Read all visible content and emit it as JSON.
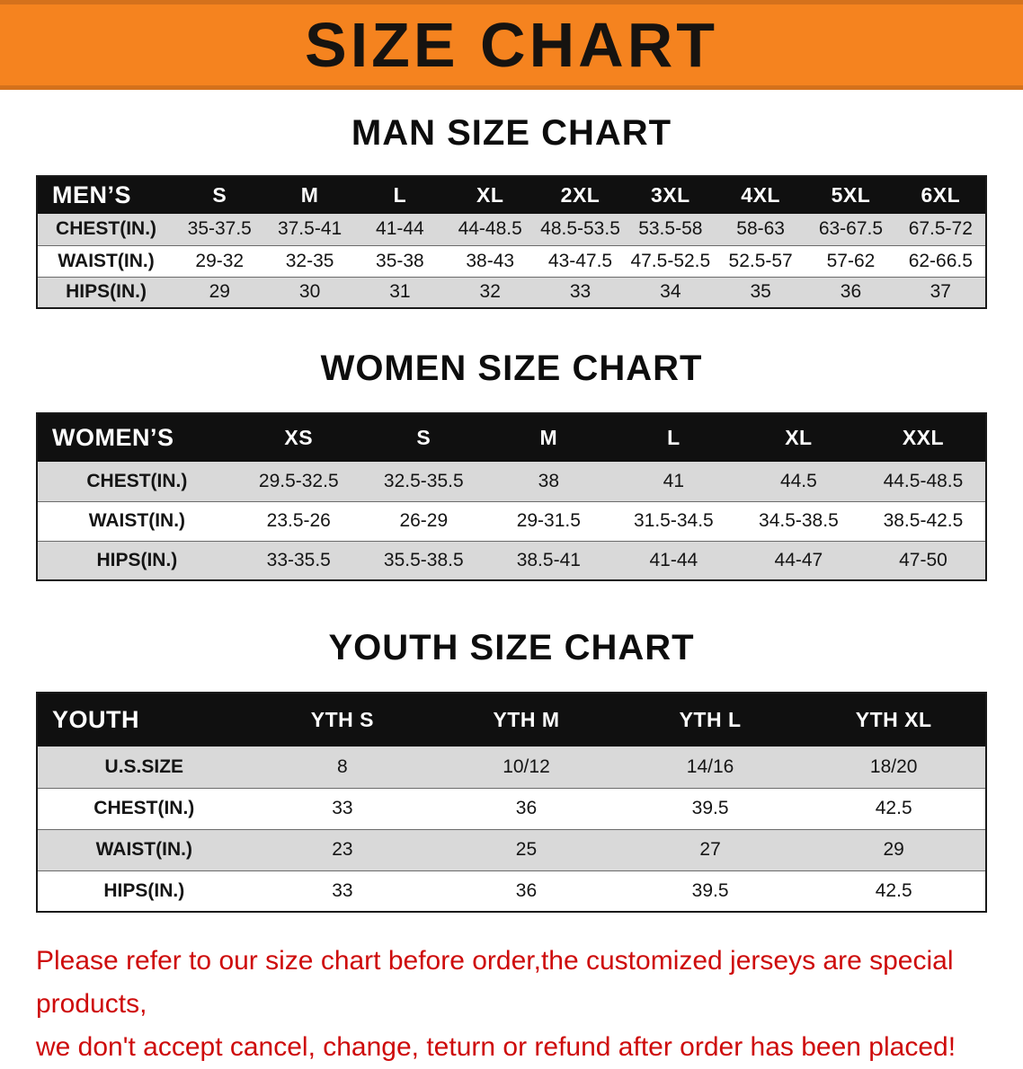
{
  "banner": {
    "title": "SIZE CHART"
  },
  "colors": {
    "banner_orange": "#f5831f",
    "table_header_black": "#101010",
    "row_gray": "#d9d9d9",
    "note_red": "#ce0b0b"
  },
  "sections": [
    {
      "heading": "MAN SIZE CHART",
      "table": {
        "header": [
          "MEN’S",
          "S",
          "M",
          "L",
          "XL",
          "2XL",
          "3XL",
          "4XL",
          "5XL",
          "6XL"
        ],
        "rows": [
          [
            "CHEST(IN.)",
            "35-37.5",
            "37.5-41",
            "41-44",
            "44-48.5",
            "48.5-53.5",
            "53.5-58",
            "58-63",
            "63-67.5",
            "67.5-72"
          ],
          [
            "WAIST(IN.)",
            "29-32",
            "32-35",
            "35-38",
            "38-43",
            "43-47.5",
            "47.5-52.5",
            "52.5-57",
            "57-62",
            "62-66.5"
          ],
          [
            "HIPS(IN.)",
            "29",
            "30",
            "31",
            "32",
            "33",
            "34",
            "35",
            "36",
            "37"
          ]
        ]
      }
    },
    {
      "heading": "WOMEN SIZE CHART",
      "table": {
        "header": [
          "WOMEN’S",
          "XS",
          "S",
          "M",
          "L",
          "XL",
          "XXL"
        ],
        "rows": [
          [
            "CHEST(IN.)",
            "29.5-32.5",
            "32.5-35.5",
            "38",
            "41",
            "44.5",
            "44.5-48.5"
          ],
          [
            "WAIST(IN.)",
            "23.5-26",
            "26-29",
            "29-31.5",
            "31.5-34.5",
            "34.5-38.5",
            "38.5-42.5"
          ],
          [
            "HIPS(IN.)",
            "33-35.5",
            "35.5-38.5",
            "38.5-41",
            "41-44",
            "44-47",
            "47-50"
          ]
        ]
      }
    },
    {
      "heading": "YOUTH SIZE CHART",
      "table": {
        "header": [
          "YOUTH",
          "YTH S",
          "YTH M",
          "YTH L",
          "YTH XL"
        ],
        "rows": [
          [
            "U.S.SIZE",
            "8",
            "10/12",
            "14/16",
            "18/20"
          ],
          [
            "CHEST(IN.)",
            "33",
            "36",
            "39.5",
            "42.5"
          ],
          [
            "WAIST(IN.)",
            "23",
            "25",
            "27",
            "29"
          ],
          [
            "HIPS(IN.)",
            "33",
            "36",
            "39.5",
            "42.5"
          ]
        ]
      }
    }
  ],
  "note": {
    "lines": [
      "Please refer to our size chart before order,the customized jerseys are special products,",
      "we don't accept cancel, change, teturn or refund after order has been placed!"
    ]
  }
}
